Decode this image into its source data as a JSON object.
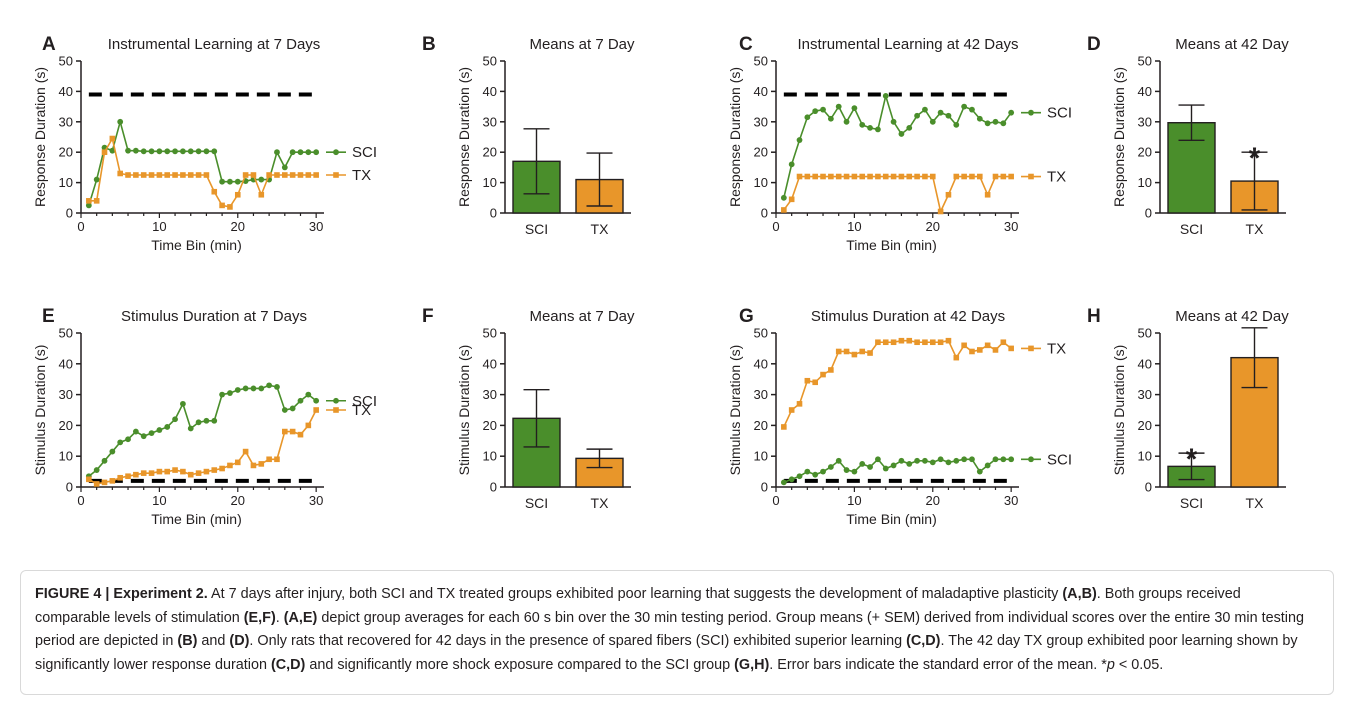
{
  "colors": {
    "sci": "#4a8e2b",
    "tx": "#e8962a",
    "axis": "#231f20"
  },
  "chart_data": [
    {
      "letter": "A",
      "type": "line",
      "title": "Instrumental Learning at 7 Days",
      "xlabel": "Time Bin (min)",
      "ylabel": "Response Duration (s)",
      "xlim": [
        0,
        31
      ],
      "ylim": [
        0,
        50
      ],
      "xticks": [
        "0",
        "10",
        "20",
        "30"
      ],
      "yticks": [
        "0",
        "10",
        "20",
        "30",
        "40",
        "50"
      ],
      "reference_line": 39,
      "x": [
        1,
        2,
        3,
        4,
        5,
        6,
        7,
        8,
        9,
        10,
        11,
        12,
        13,
        14,
        15,
        16,
        17,
        18,
        19,
        20,
        21,
        22,
        23,
        24,
        25,
        26,
        27,
        28,
        29,
        30
      ],
      "series": [
        {
          "name": "SCI",
          "marker": "circle",
          "values": [
            2.5,
            11,
            21.5,
            20.5,
            30,
            20.5,
            20.5,
            20.3,
            20.3,
            20.3,
            20.3,
            20.3,
            20.3,
            20.3,
            20.3,
            20.3,
            20.3,
            10.3,
            10.3,
            10.3,
            10.5,
            11,
            11,
            11,
            20,
            15,
            20,
            20,
            20,
            20
          ]
        },
        {
          "name": "TX",
          "marker": "square",
          "values": [
            4,
            4,
            20,
            24.5,
            13,
            12.5,
            12.5,
            12.5,
            12.5,
            12.5,
            12.5,
            12.5,
            12.5,
            12.5,
            12.5,
            12.5,
            7,
            2.5,
            2,
            6,
            12.5,
            12.5,
            6,
            12.5,
            12.5,
            12.5,
            12.5,
            12.5,
            12.5,
            12.5
          ]
        }
      ]
    },
    {
      "letter": "B",
      "type": "bar",
      "title": "Means at 7 Day",
      "ylabel": "Response Duration (s)",
      "ylim": [
        0,
        50
      ],
      "yticks": [
        "0",
        "10",
        "20",
        "30",
        "40",
        "50"
      ],
      "categories": [
        "SCI",
        "TX"
      ],
      "values": [
        17,
        11
      ],
      "errors": [
        10.7,
        8.7
      ],
      "significant": [
        false,
        false
      ]
    },
    {
      "letter": "C",
      "type": "line",
      "title": "Instrumental Learning at 42 Days",
      "xlabel": "Time Bin (min)",
      "ylabel": "Response Duration (s)",
      "xlim": [
        0,
        31
      ],
      "ylim": [
        0,
        50
      ],
      "xticks": [
        "0",
        "10",
        "20",
        "30"
      ],
      "yticks": [
        "0",
        "10",
        "20",
        "30",
        "40",
        "50"
      ],
      "reference_line": 39,
      "x": [
        1,
        2,
        3,
        4,
        5,
        6,
        7,
        8,
        9,
        10,
        11,
        12,
        13,
        14,
        15,
        16,
        17,
        18,
        19,
        20,
        21,
        22,
        23,
        24,
        25,
        26,
        27,
        28,
        29,
        30
      ],
      "series": [
        {
          "name": "SCI",
          "marker": "circle",
          "values": [
            5,
            16,
            24,
            31.5,
            33.5,
            34,
            31,
            35,
            30,
            34.5,
            29,
            28,
            27.5,
            38.5,
            30,
            26,
            28,
            32,
            34,
            30,
            33,
            32,
            29,
            35,
            34,
            31,
            29.5,
            30,
            29.5,
            33
          ]
        },
        {
          "name": "TX",
          "marker": "square",
          "values": [
            1,
            4.5,
            12,
            12,
            12,
            12,
            12,
            12,
            12,
            12,
            12,
            12,
            12,
            12,
            12,
            12,
            12,
            12,
            12,
            12,
            0.5,
            6,
            12,
            12,
            12,
            12,
            6,
            12,
            12,
            12
          ]
        }
      ]
    },
    {
      "letter": "D",
      "type": "bar",
      "title": "Means at 42 Day",
      "ylabel": "Response Duration (s)",
      "ylim": [
        0,
        50
      ],
      "yticks": [
        "0",
        "10",
        "20",
        "30",
        "40",
        "50"
      ],
      "categories": [
        "SCI",
        "TX"
      ],
      "values": [
        29.7,
        10.5
      ],
      "errors": [
        5.8,
        9.5
      ],
      "significant": [
        false,
        true
      ]
    },
    {
      "letter": "E",
      "type": "line",
      "title": "Stimulus Duration at 7 Days",
      "xlabel": "Time Bin (min)",
      "ylabel": "Stimulus Duration (s)",
      "xlim": [
        0,
        31
      ],
      "ylim": [
        0,
        50
      ],
      "xticks": [
        "0",
        "10",
        "20",
        "30"
      ],
      "yticks": [
        "0",
        "10",
        "20",
        "30",
        "40",
        "50"
      ],
      "reference_line": 2,
      "x": [
        1,
        2,
        3,
        4,
        5,
        6,
        7,
        8,
        9,
        10,
        11,
        12,
        13,
        14,
        15,
        16,
        17,
        18,
        19,
        20,
        21,
        22,
        23,
        24,
        25,
        26,
        27,
        28,
        29,
        30
      ],
      "series": [
        {
          "name": "SCI",
          "marker": "circle",
          "values": [
            3.5,
            5.5,
            8.5,
            11.5,
            14.5,
            15.5,
            18,
            16.5,
            17.5,
            18.5,
            19.5,
            22,
            27,
            19,
            21,
            21.5,
            21.5,
            30,
            30.5,
            31.5,
            32,
            32,
            32,
            33,
            32.5,
            25,
            25.5,
            28,
            30,
            28
          ]
        },
        {
          "name": "TX",
          "marker": "square",
          "values": [
            2.5,
            1,
            1.5,
            2,
            3,
            3.5,
            4,
            4.5,
            4.5,
            5,
            5,
            5.5,
            5,
            4,
            4.5,
            5,
            5.5,
            6,
            7,
            8,
            11.5,
            7,
            7.5,
            9,
            9,
            18,
            18,
            17,
            20,
            25
          ]
        }
      ]
    },
    {
      "letter": "F",
      "type": "bar",
      "title": "Means at 7 Day",
      "ylabel": "Stimulus Duration (s)",
      "ylim": [
        0,
        50
      ],
      "yticks": [
        "0",
        "10",
        "20",
        "30",
        "40",
        "50"
      ],
      "categories": [
        "SCI",
        "TX"
      ],
      "values": [
        22.3,
        9.3
      ],
      "errors": [
        9.3,
        3
      ],
      "significant": [
        false,
        false
      ]
    },
    {
      "letter": "G",
      "type": "line",
      "title": "Stimulus Duration at 42 Days",
      "xlabel": "Time Bin (min)",
      "ylabel": "Stimulus Duration (s)",
      "xlim": [
        0,
        31
      ],
      "ylim": [
        0,
        50
      ],
      "xticks": [
        "0",
        "10",
        "20",
        "30"
      ],
      "yticks": [
        "0",
        "10",
        "20",
        "30",
        "40",
        "50"
      ],
      "reference_line": 2,
      "x": [
        1,
        2,
        3,
        4,
        5,
        6,
        7,
        8,
        9,
        10,
        11,
        12,
        13,
        14,
        15,
        16,
        17,
        18,
        19,
        20,
        21,
        22,
        23,
        24,
        25,
        26,
        27,
        28,
        29,
        30
      ],
      "series": [
        {
          "name": "TX",
          "marker": "square",
          "values": [
            19.5,
            25,
            27,
            34.5,
            34,
            36.5,
            38,
            44,
            44,
            43,
            44,
            43.5,
            47,
            47,
            47,
            47.5,
            47.5,
            47,
            47,
            47,
            47,
            47.5,
            42,
            46,
            44,
            44.5,
            46,
            44.5,
            47,
            45
          ]
        },
        {
          "name": "SCI",
          "marker": "circle",
          "values": [
            1.5,
            2.5,
            3.5,
            5,
            4,
            5,
            6.5,
            8.5,
            5.5,
            5,
            7.5,
            6.5,
            9,
            6,
            7,
            8.5,
            7.5,
            8.5,
            8.5,
            8,
            9,
            8,
            8.5,
            9,
            9,
            5,
            7,
            9,
            9,
            9
          ]
        }
      ]
    },
    {
      "letter": "H",
      "type": "bar",
      "title": "Means at 42 Day",
      "ylabel": "Stimulus Duration (s)",
      "ylim": [
        0,
        50
      ],
      "yticks": [
        "0",
        "10",
        "20",
        "30",
        "40",
        "50"
      ],
      "categories": [
        "SCI",
        "TX"
      ],
      "values": [
        6.7,
        42
      ],
      "errors": [
        4.3,
        9.7
      ],
      "significant": [
        true,
        false
      ]
    }
  ],
  "significance_marker": "*",
  "caption": {
    "label": "FIGURE 4 | Experiment 2.",
    "segments": [
      {
        "t": " At 7 days after injury, both SCI and TX treated groups exhibited poor learning that suggests the development of maladaptive plasticity ",
        "b": false
      },
      {
        "t": "(A,B)",
        "b": true
      },
      {
        "t": ". Both groups received comparable levels of stimulation ",
        "b": false
      },
      {
        "t": "(E,F)",
        "b": true
      },
      {
        "t": ". ",
        "b": false
      },
      {
        "t": "(A,E)",
        "b": true
      },
      {
        "t": " depict group averages for each 60 s bin over the 30 min testing period. Group means (+ SEM) derived from individual scores over the entire 30 min testing period are depicted in ",
        "b": false
      },
      {
        "t": "(B)",
        "b": true
      },
      {
        "t": " and ",
        "b": false
      },
      {
        "t": "(D)",
        "b": true
      },
      {
        "t": ". Only rats that recovered for 42 days in the presence of spared fibers (SCI) exhibited superior learning ",
        "b": false
      },
      {
        "t": "(C,D)",
        "b": true
      },
      {
        "t": ". The 42 day TX group exhibited poor learning shown by significantly lower response duration ",
        "b": false
      },
      {
        "t": "(C,D)",
        "b": true
      },
      {
        "t": " and significantly more shock exposure compared to the SCI group ",
        "b": false
      },
      {
        "t": "(G,H)",
        "b": true
      },
      {
        "t": ". Error bars indicate the standard error of the mean. *",
        "b": false
      },
      {
        "t": "p",
        "b": false,
        "i": true
      },
      {
        "t": " < 0.05.",
        "b": false
      }
    ]
  }
}
